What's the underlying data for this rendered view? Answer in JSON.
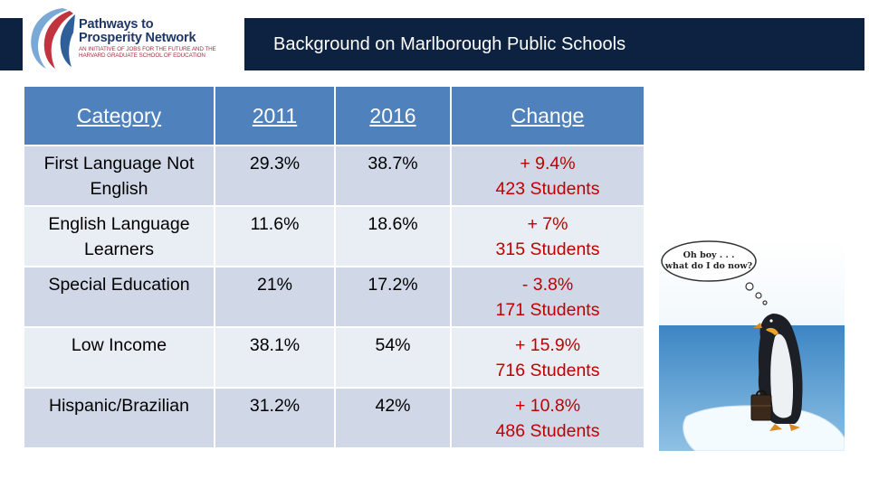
{
  "header": {
    "title": "Background on Marlborough Public Schools",
    "logo": {
      "line1": "Pathways to",
      "line2": "Prosperity Network",
      "subtitle": "AN INITIATIVE OF JOBS FOR THE FUTURE AND THE HARVARD GRADUATE SCHOOL OF EDUCATION"
    }
  },
  "table": {
    "headers": [
      "Category",
      "2011",
      "2016",
      "Change"
    ],
    "rows": [
      {
        "category": "First Language Not English",
        "y2011": "29.3%",
        "y2016": "38.7%",
        "change_pct": "+ 9.4%",
        "change_students": "423 Students"
      },
      {
        "category": "English Language Learners",
        "y2011": "11.6%",
        "y2016": "18.6%",
        "change_pct": "+ 7%",
        "change_students": "315 Students"
      },
      {
        "category": "Special Education",
        "y2011": "21%",
        "y2016": "17.2%",
        "change_pct": "- 3.8%",
        "change_students": "171 Students"
      },
      {
        "category": "Low Income",
        "y2011": "38.1%",
        "y2016": "54%",
        "change_pct": "+ 15.9%",
        "change_students": "716 Students"
      },
      {
        "category": "Hispanic/Brazilian",
        "y2011": "31.2%",
        "y2016": "42%",
        "change_pct": "+ 10.8%",
        "change_students": "486 Students"
      }
    ]
  },
  "illustration": {
    "thought_bubble": "Oh boy . . . what do I do now?"
  },
  "colors": {
    "header_bg": "#0d2240",
    "table_header_bg": "#4f81bd",
    "row_dark": "#d0d8e8",
    "row_light": "#e9edf4",
    "change_text": "#c00000"
  }
}
